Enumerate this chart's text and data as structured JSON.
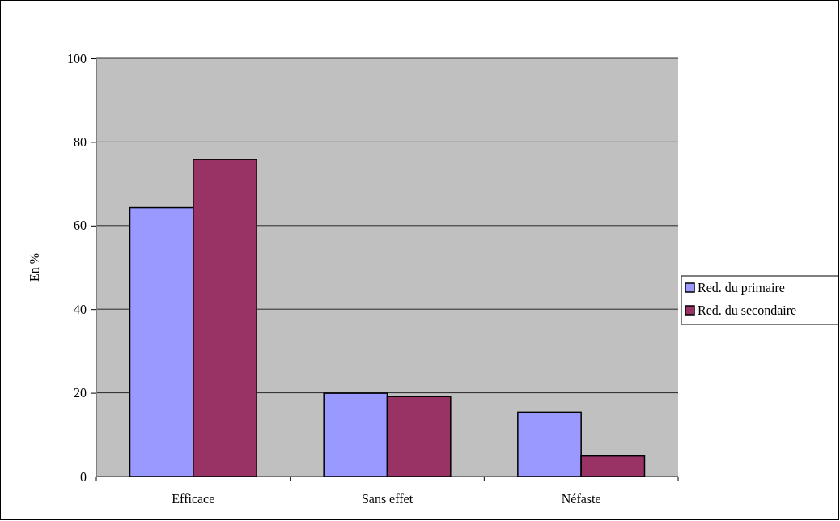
{
  "chart_data": {
    "type": "bar",
    "ylabel": "En %",
    "categories": [
      "Efficace",
      "Sans effet",
      "Néfaste"
    ],
    "series": [
      {
        "name": "Red. du primaire",
        "color": "#9999ff",
        "values": [
          64.3,
          19.9,
          15.4
        ]
      },
      {
        "name": "Red. du secondaire",
        "color": "#993366",
        "values": [
          75.8,
          19.1,
          4.9
        ]
      }
    ],
    "ylim": [
      0,
      100
    ],
    "yticks": [
      0,
      20,
      40,
      60,
      80,
      100
    ],
    "grid": "y",
    "legend": "right"
  }
}
